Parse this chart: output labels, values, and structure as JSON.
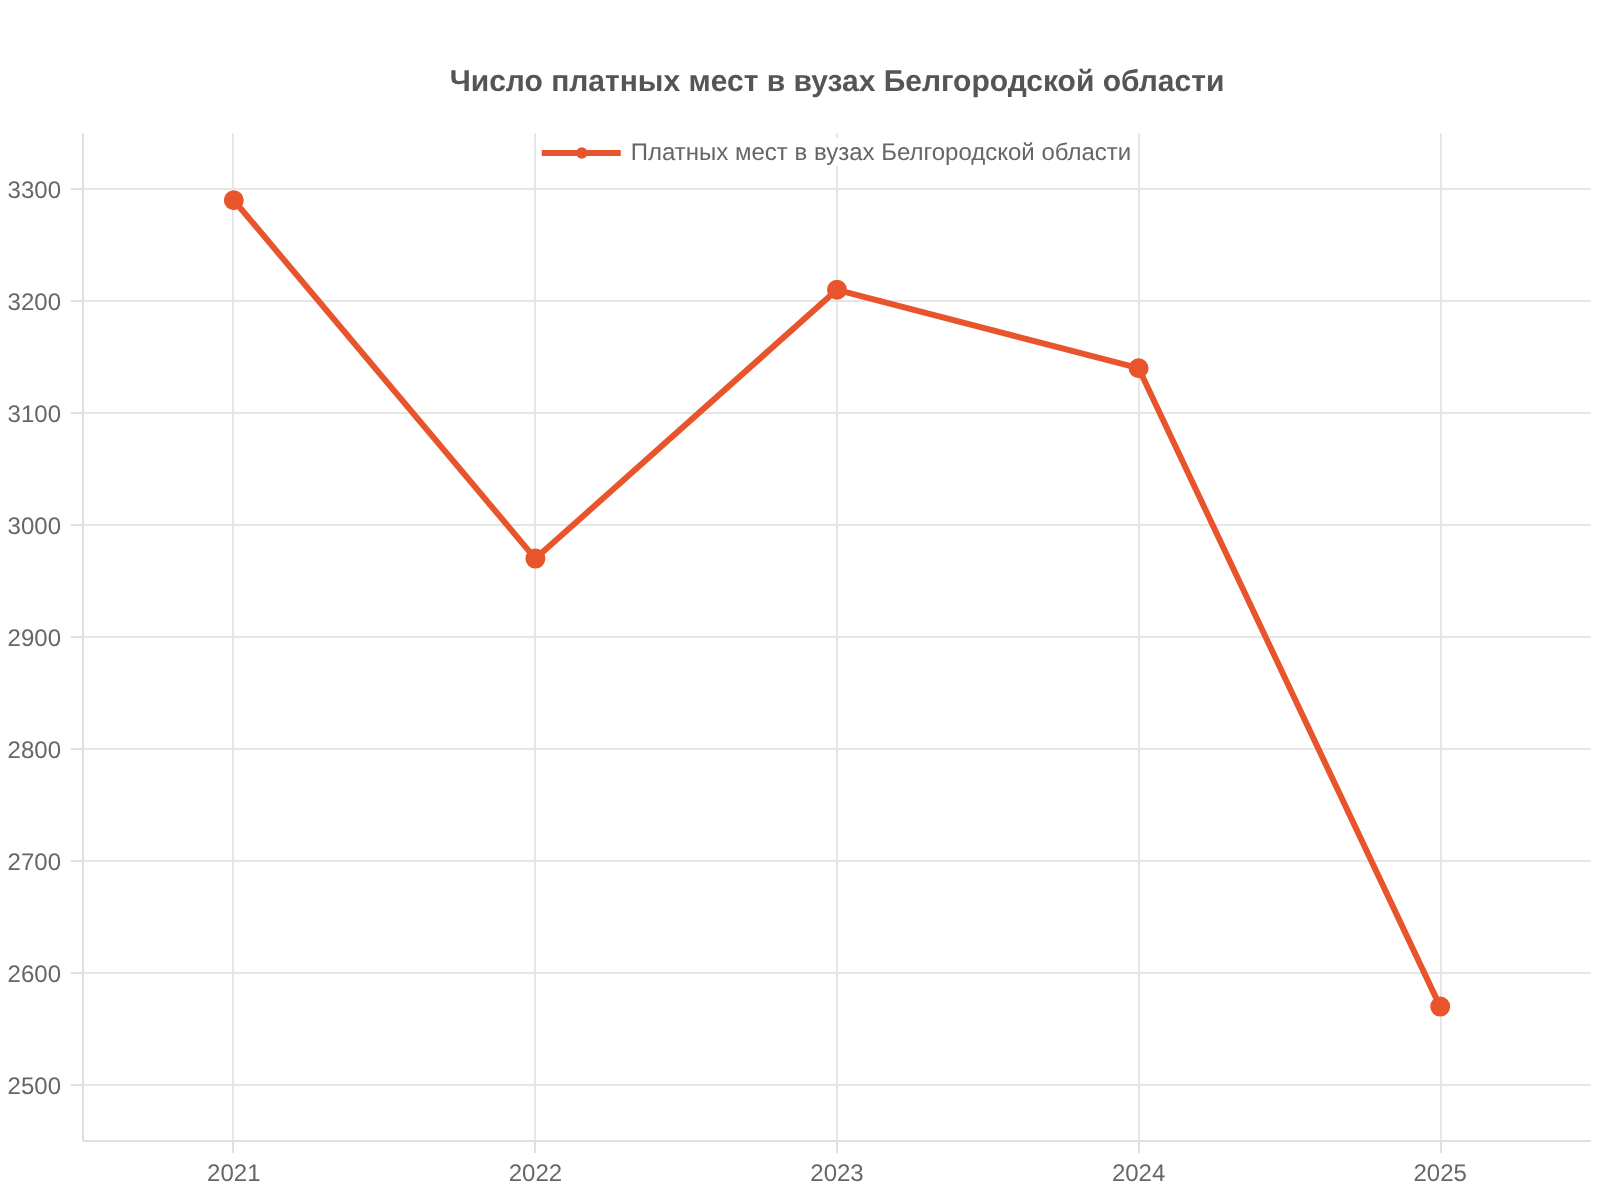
{
  "chart_data": {
    "type": "line",
    "title": "Число платных мест в вузах Белгородской области",
    "categories": [
      "2021",
      "2022",
      "2023",
      "2024",
      "2025"
    ],
    "series": [
      {
        "name": "Платных мест в вузах Белгородской области",
        "color": "#e8552c",
        "values": [
          3290,
          2970,
          3210,
          3140,
          2570
        ]
      }
    ],
    "ylim": [
      2450,
      3350
    ],
    "yticks": [
      2500,
      2600,
      2700,
      2800,
      2900,
      3000,
      3100,
      3200,
      3300
    ],
    "grid": true,
    "legend": "top",
    "marker": "circle",
    "line_style": "solid"
  }
}
